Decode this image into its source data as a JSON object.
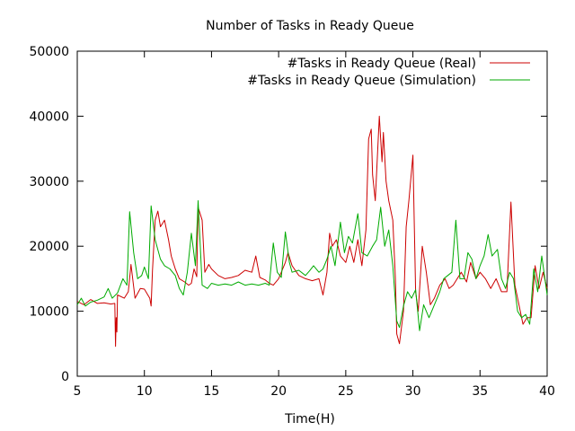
{
  "chart_data": {
    "type": "line",
    "title": "Number of Tasks in Ready Queue",
    "xlabel": "Time(H)",
    "ylabel": "",
    "xlim": [
      5,
      40
    ],
    "ylim": [
      0,
      50000
    ],
    "xticks": [
      5,
      10,
      15,
      20,
      25,
      30,
      35,
      40
    ],
    "yticks": [
      0,
      10000,
      20000,
      30000,
      40000,
      50000
    ],
    "grid": false,
    "legend_position": "top-right",
    "series": [
      {
        "name": "#Tasks in Ready Queue (Real)",
        "color": "#cc0000",
        "points": [
          [
            5.0,
            11500
          ],
          [
            5.5,
            11000
          ],
          [
            6.0,
            11800
          ],
          [
            6.5,
            11200
          ],
          [
            7.0,
            11300
          ],
          [
            7.5,
            11100
          ],
          [
            7.8,
            11200
          ],
          [
            7.85,
            4600
          ],
          [
            7.9,
            9000
          ],
          [
            7.95,
            6800
          ],
          [
            8.0,
            12500
          ],
          [
            8.5,
            12000
          ],
          [
            8.8,
            13000
          ],
          [
            9.0,
            17200
          ],
          [
            9.3,
            12000
          ],
          [
            9.7,
            13500
          ],
          [
            10.0,
            13400
          ],
          [
            10.4,
            12000
          ],
          [
            10.5,
            10800
          ],
          [
            10.6,
            16200
          ],
          [
            10.8,
            24000
          ],
          [
            11.0,
            25400
          ],
          [
            11.2,
            23000
          ],
          [
            11.5,
            24000
          ],
          [
            11.8,
            21000
          ],
          [
            12.0,
            18500
          ],
          [
            12.3,
            16500
          ],
          [
            12.6,
            15000
          ],
          [
            13.0,
            14500
          ],
          [
            13.3,
            14000
          ],
          [
            13.5,
            14300
          ],
          [
            13.7,
            16500
          ],
          [
            13.9,
            15300
          ],
          [
            14.0,
            26000
          ],
          [
            14.3,
            24000
          ],
          [
            14.5,
            16000
          ],
          [
            14.8,
            17200
          ],
          [
            15.0,
            16500
          ],
          [
            15.5,
            15500
          ],
          [
            16.0,
            15000
          ],
          [
            16.5,
            15200
          ],
          [
            17.0,
            15500
          ],
          [
            17.5,
            16300
          ],
          [
            18.0,
            16000
          ],
          [
            18.3,
            18500
          ],
          [
            18.6,
            15200
          ],
          [
            19.0,
            14800
          ],
          [
            19.3,
            14300
          ],
          [
            19.6,
            14000
          ],
          [
            20.0,
            15000
          ],
          [
            20.5,
            17500
          ],
          [
            20.7,
            19000
          ],
          [
            21.0,
            17000
          ],
          [
            21.5,
            15500
          ],
          [
            22.0,
            15000
          ],
          [
            22.5,
            14700
          ],
          [
            23.0,
            15000
          ],
          [
            23.3,
            12500
          ],
          [
            23.6,
            16000
          ],
          [
            23.8,
            22000
          ],
          [
            24.0,
            20000
          ],
          [
            24.3,
            21000
          ],
          [
            24.6,
            18500
          ],
          [
            25.0,
            17500
          ],
          [
            25.3,
            20000
          ],
          [
            25.6,
            17500
          ],
          [
            25.9,
            21000
          ],
          [
            26.2,
            17000
          ],
          [
            26.5,
            22500
          ],
          [
            26.7,
            36500
          ],
          [
            26.9,
            38000
          ],
          [
            27.0,
            31000
          ],
          [
            27.2,
            27000
          ],
          [
            27.5,
            40000
          ],
          [
            27.7,
            33000
          ],
          [
            27.8,
            37500
          ],
          [
            28.0,
            30000
          ],
          [
            28.2,
            27000
          ],
          [
            28.5,
            24000
          ],
          [
            28.7,
            15000
          ],
          [
            28.8,
            6500
          ],
          [
            29.0,
            5000
          ],
          [
            29.3,
            10000
          ],
          [
            29.5,
            23000
          ],
          [
            29.7,
            27000
          ],
          [
            30.0,
            34000
          ],
          [
            30.2,
            13000
          ],
          [
            30.4,
            10000
          ],
          [
            30.7,
            20000
          ],
          [
            31.0,
            16000
          ],
          [
            31.3,
            11000
          ],
          [
            31.6,
            12000
          ],
          [
            32.0,
            14000
          ],
          [
            32.4,
            15000
          ],
          [
            32.7,
            13500
          ],
          [
            33.0,
            14000
          ],
          [
            33.3,
            15000
          ],
          [
            33.6,
            16000
          ],
          [
            34.0,
            14500
          ],
          [
            34.3,
            17500
          ],
          [
            34.7,
            15000
          ],
          [
            35.0,
            16000
          ],
          [
            35.4,
            15000
          ],
          [
            35.8,
            13500
          ],
          [
            36.2,
            15000
          ],
          [
            36.6,
            13000
          ],
          [
            37.0,
            13000
          ],
          [
            37.3,
            26800
          ],
          [
            37.6,
            14000
          ],
          [
            37.9,
            11000
          ],
          [
            38.2,
            8000
          ],
          [
            38.5,
            9000
          ],
          [
            38.8,
            9000
          ],
          [
            39.1,
            17000
          ],
          [
            39.4,
            13500
          ],
          [
            39.7,
            16000
          ],
          [
            40.0,
            13500
          ]
        ]
      },
      {
        "name": "#Tasks in Ready Queue (Simulation)",
        "color": "#00aa00",
        "points": [
          [
            5.0,
            11000
          ],
          [
            5.3,
            12000
          ],
          [
            5.6,
            10800
          ],
          [
            6.0,
            11400
          ],
          [
            6.5,
            11700
          ],
          [
            7.0,
            12200
          ],
          [
            7.3,
            13500
          ],
          [
            7.6,
            12000
          ],
          [
            8.0,
            12800
          ],
          [
            8.4,
            15000
          ],
          [
            8.7,
            14000
          ],
          [
            8.9,
            25300
          ],
          [
            9.2,
            19000
          ],
          [
            9.5,
            15000
          ],
          [
            9.8,
            15500
          ],
          [
            10.0,
            16800
          ],
          [
            10.3,
            15000
          ],
          [
            10.5,
            26200
          ],
          [
            10.8,
            21000
          ],
          [
            11.2,
            18000
          ],
          [
            11.5,
            17000
          ],
          [
            11.9,
            16500
          ],
          [
            12.3,
            15500
          ],
          [
            12.6,
            13500
          ],
          [
            12.9,
            12500
          ],
          [
            13.2,
            16000
          ],
          [
            13.5,
            22000
          ],
          [
            13.8,
            17000
          ],
          [
            14.0,
            27000
          ],
          [
            14.3,
            14000
          ],
          [
            14.7,
            13500
          ],
          [
            15.0,
            14300
          ],
          [
            15.5,
            14000
          ],
          [
            16.0,
            14200
          ],
          [
            16.5,
            14000
          ],
          [
            17.0,
            14500
          ],
          [
            17.5,
            14000
          ],
          [
            18.0,
            14200
          ],
          [
            18.5,
            14000
          ],
          [
            19.0,
            14300
          ],
          [
            19.3,
            14000
          ],
          [
            19.6,
            20500
          ],
          [
            19.9,
            16000
          ],
          [
            20.2,
            15200
          ],
          [
            20.5,
            22200
          ],
          [
            20.8,
            17500
          ],
          [
            21.0,
            16000
          ],
          [
            21.5,
            16300
          ],
          [
            22.0,
            15500
          ],
          [
            22.3,
            16200
          ],
          [
            22.6,
            17000
          ],
          [
            23.0,
            16000
          ],
          [
            23.3,
            16500
          ],
          [
            23.6,
            18000
          ],
          [
            23.9,
            20000
          ],
          [
            24.2,
            17000
          ],
          [
            24.6,
            23700
          ],
          [
            24.9,
            19000
          ],
          [
            25.2,
            21500
          ],
          [
            25.5,
            20500
          ],
          [
            25.9,
            25000
          ],
          [
            26.2,
            19000
          ],
          [
            26.6,
            18500
          ],
          [
            27.0,
            20000
          ],
          [
            27.3,
            21000
          ],
          [
            27.6,
            26000
          ],
          [
            27.9,
            20000
          ],
          [
            28.2,
            22500
          ],
          [
            28.5,
            17000
          ],
          [
            28.8,
            8500
          ],
          [
            29.0,
            7500
          ],
          [
            29.3,
            10800
          ],
          [
            29.6,
            13000
          ],
          [
            29.9,
            12000
          ],
          [
            30.2,
            13300
          ],
          [
            30.5,
            7000
          ],
          [
            30.8,
            11000
          ],
          [
            31.2,
            9000
          ],
          [
            31.6,
            11000
          ],
          [
            32.0,
            13000
          ],
          [
            32.3,
            15000
          ],
          [
            32.6,
            15500
          ],
          [
            32.9,
            16000
          ],
          [
            33.2,
            24000
          ],
          [
            33.5,
            15000
          ],
          [
            33.8,
            15000
          ],
          [
            34.1,
            19000
          ],
          [
            34.4,
            18000
          ],
          [
            34.7,
            15000
          ],
          [
            35.0,
            17000
          ],
          [
            35.3,
            18500
          ],
          [
            35.6,
            21800
          ],
          [
            35.9,
            18500
          ],
          [
            36.3,
            19500
          ],
          [
            36.6,
            15000
          ],
          [
            36.9,
            13500
          ],
          [
            37.2,
            16000
          ],
          [
            37.5,
            15000
          ],
          [
            37.8,
            10000
          ],
          [
            38.1,
            9000
          ],
          [
            38.4,
            9500
          ],
          [
            38.7,
            8000
          ],
          [
            39.0,
            16500
          ],
          [
            39.3,
            13000
          ],
          [
            39.6,
            18500
          ],
          [
            40.0,
            12500
          ]
        ]
      }
    ]
  }
}
